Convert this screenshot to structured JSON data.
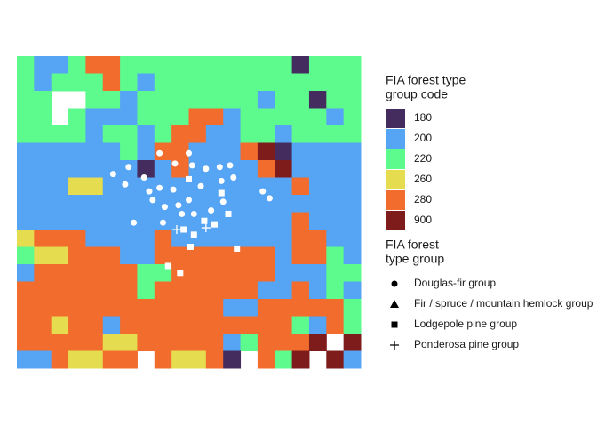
{
  "map": {
    "raster": [
      [
        220,
        200,
        200,
        220,
        280,
        280,
        220,
        220,
        220,
        220,
        220,
        220,
        220,
        220,
        220,
        220,
        180,
        220,
        220,
        220
      ],
      [
        220,
        200,
        220,
        220,
        220,
        280,
        220,
        200,
        220,
        220,
        220,
        220,
        220,
        220,
        220,
        220,
        220,
        220,
        220,
        220
      ],
      [
        220,
        220,
        null,
        null,
        220,
        220,
        200,
        220,
        220,
        220,
        220,
        220,
        220,
        220,
        200,
        220,
        220,
        180,
        220,
        220
      ],
      [
        220,
        220,
        null,
        220,
        200,
        200,
        200,
        220,
        220,
        220,
        280,
        280,
        200,
        220,
        220,
        220,
        220,
        220,
        200,
        220
      ],
      [
        220,
        220,
        220,
        220,
        200,
        220,
        220,
        200,
        220,
        280,
        280,
        200,
        200,
        220,
        220,
        200,
        220,
        220,
        220,
        220
      ],
      [
        200,
        200,
        200,
        200,
        200,
        200,
        220,
        200,
        280,
        280,
        200,
        200,
        200,
        280,
        900,
        180,
        200,
        200,
        200,
        200
      ],
      [
        200,
        200,
        200,
        200,
        200,
        200,
        200,
        180,
        200,
        280,
        200,
        200,
        200,
        200,
        280,
        900,
        200,
        200,
        200,
        200
      ],
      [
        200,
        200,
        200,
        260,
        260,
        200,
        200,
        200,
        200,
        200,
        200,
        200,
        200,
        200,
        200,
        200,
        280,
        200,
        200,
        200
      ],
      [
        200,
        200,
        200,
        200,
        200,
        200,
        200,
        200,
        200,
        200,
        200,
        200,
        200,
        200,
        200,
        200,
        200,
        200,
        200,
        200
      ],
      [
        200,
        200,
        200,
        200,
        200,
        200,
        200,
        200,
        200,
        200,
        200,
        200,
        200,
        200,
        200,
        200,
        280,
        200,
        200,
        200
      ],
      [
        260,
        280,
        280,
        280,
        200,
        200,
        200,
        200,
        280,
        200,
        200,
        200,
        200,
        200,
        200,
        200,
        280,
        280,
        200,
        200
      ],
      [
        220,
        260,
        260,
        280,
        280,
        280,
        200,
        200,
        280,
        280,
        280,
        280,
        280,
        280,
        280,
        200,
        280,
        280,
        220,
        200
      ],
      [
        200,
        280,
        280,
        280,
        280,
        280,
        280,
        220,
        220,
        280,
        280,
        280,
        280,
        280,
        280,
        200,
        200,
        200,
        220,
        220
      ],
      [
        280,
        280,
        280,
        280,
        280,
        280,
        280,
        220,
        280,
        280,
        280,
        280,
        280,
        280,
        200,
        200,
        280,
        200,
        220,
        200
      ],
      [
        280,
        280,
        280,
        280,
        280,
        280,
        280,
        280,
        280,
        280,
        280,
        280,
        200,
        200,
        280,
        280,
        280,
        280,
        280,
        220
      ],
      [
        280,
        280,
        260,
        280,
        280,
        200,
        280,
        280,
        280,
        280,
        280,
        280,
        280,
        280,
        280,
        280,
        220,
        200,
        280,
        220
      ],
      [
        280,
        280,
        280,
        280,
        280,
        260,
        260,
        280,
        280,
        280,
        280,
        280,
        200,
        220,
        280,
        280,
        280,
        900,
        null,
        900
      ],
      [
        200,
        200,
        280,
        260,
        260,
        280,
        280,
        null,
        280,
        260,
        260,
        280,
        180,
        null,
        280,
        220,
        900,
        null,
        900,
        200
      ]
    ],
    "points": [
      {
        "x": [
          6.5,
          5.6,
          6.3,
          7.4,
          8.3,
          9.2,
          10.0,
          10.2,
          11.0,
          11.8,
          12.4,
          12.6,
          11.9,
          10.7,
          10.0,
          9.1,
          8.3,
          7.9,
          8.6,
          6.8,
          8.5,
          9.6,
          10.3,
          11.3,
          12.0,
          14.7,
          14.3,
          9.4,
          7.7
        ],
        "y": [
          6.4,
          6.8,
          7.4,
          7.0,
          5.6,
          6.2,
          5.6,
          6.3,
          6.5,
          6.4,
          6.3,
          7.0,
          7.2,
          7.5,
          8.3,
          7.7,
          7.6,
          8.3,
          8.7,
          9.6,
          9.6,
          9.1,
          9.1,
          8.9,
          8.4,
          8.2,
          7.8,
          8.6,
          7.8
        ]
      },
      {
        "x": [],
        "y": []
      },
      {
        "x": [
          10.0,
          11.9,
          12.3,
          11.5,
          10.9,
          9.7,
          12.8,
          10.1,
          8.8,
          9.5,
          10.3
        ],
        "y": [
          7.1,
          7.9,
          9.1,
          9.7,
          9.5,
          10.0,
          11.1,
          11.0,
          12.1,
          12.5,
          10.3
        ]
      },
      {
        "x": [
          9.3,
          11.0
        ],
        "y": [
          10.0,
          9.9
        ]
      }
    ]
  },
  "legend_code": {
    "title": [
      "FIA forest type",
      "group code"
    ],
    "entries": [
      {
        "code": 180,
        "color": "#452c5e"
      },
      {
        "code": 200,
        "color": "#56a4f4"
      },
      {
        "code": 220,
        "color": "#5dfa8e"
      },
      {
        "code": 260,
        "color": "#e6dc50"
      },
      {
        "code": 280,
        "color": "#f26c2d"
      },
      {
        "code": 900,
        "color": "#7e1c1c"
      }
    ]
  },
  "legend_group": {
    "title": [
      "FIA forest",
      "type group"
    ],
    "entries": [
      {
        "name": "Douglas-fir group",
        "shape": "circle"
      },
      {
        "name": "Fir / spruce / mountain hemlock group",
        "shape": "triangle"
      },
      {
        "name": "Lodgepole pine group",
        "shape": "square"
      },
      {
        "name": "Ponderosa pine group",
        "shape": "cross"
      }
    ]
  }
}
